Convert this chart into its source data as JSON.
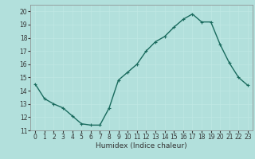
{
  "x": [
    0,
    1,
    2,
    3,
    4,
    5,
    6,
    7,
    8,
    9,
    10,
    11,
    12,
    13,
    14,
    15,
    16,
    17,
    18,
    19,
    20,
    21,
    22,
    23
  ],
  "y": [
    14.5,
    13.4,
    13.0,
    12.7,
    12.1,
    11.5,
    11.4,
    11.4,
    12.7,
    14.8,
    15.4,
    16.0,
    17.0,
    17.7,
    18.1,
    18.8,
    19.4,
    19.8,
    19.2,
    19.2,
    17.5,
    16.1,
    15.0,
    14.4
  ],
  "line_color": "#1a6b5e",
  "bg_color": "#b2e0dc",
  "grid_color": "#c0e8e4",
  "xlabel": "Humidex (Indice chaleur)",
  "xlim": [
    -0.5,
    23.5
  ],
  "ylim": [
    11,
    20.5
  ],
  "yticks": [
    11,
    12,
    13,
    14,
    15,
    16,
    17,
    18,
    19,
    20
  ],
  "xticks": [
    0,
    1,
    2,
    3,
    4,
    5,
    6,
    7,
    8,
    9,
    10,
    11,
    12,
    13,
    14,
    15,
    16,
    17,
    18,
    19,
    20,
    21,
    22,
    23
  ],
  "marker": "+",
  "markersize": 3.5,
  "linewidth": 1.0,
  "tick_labelsize": 5.5,
  "xlabel_fontsize": 6.5
}
